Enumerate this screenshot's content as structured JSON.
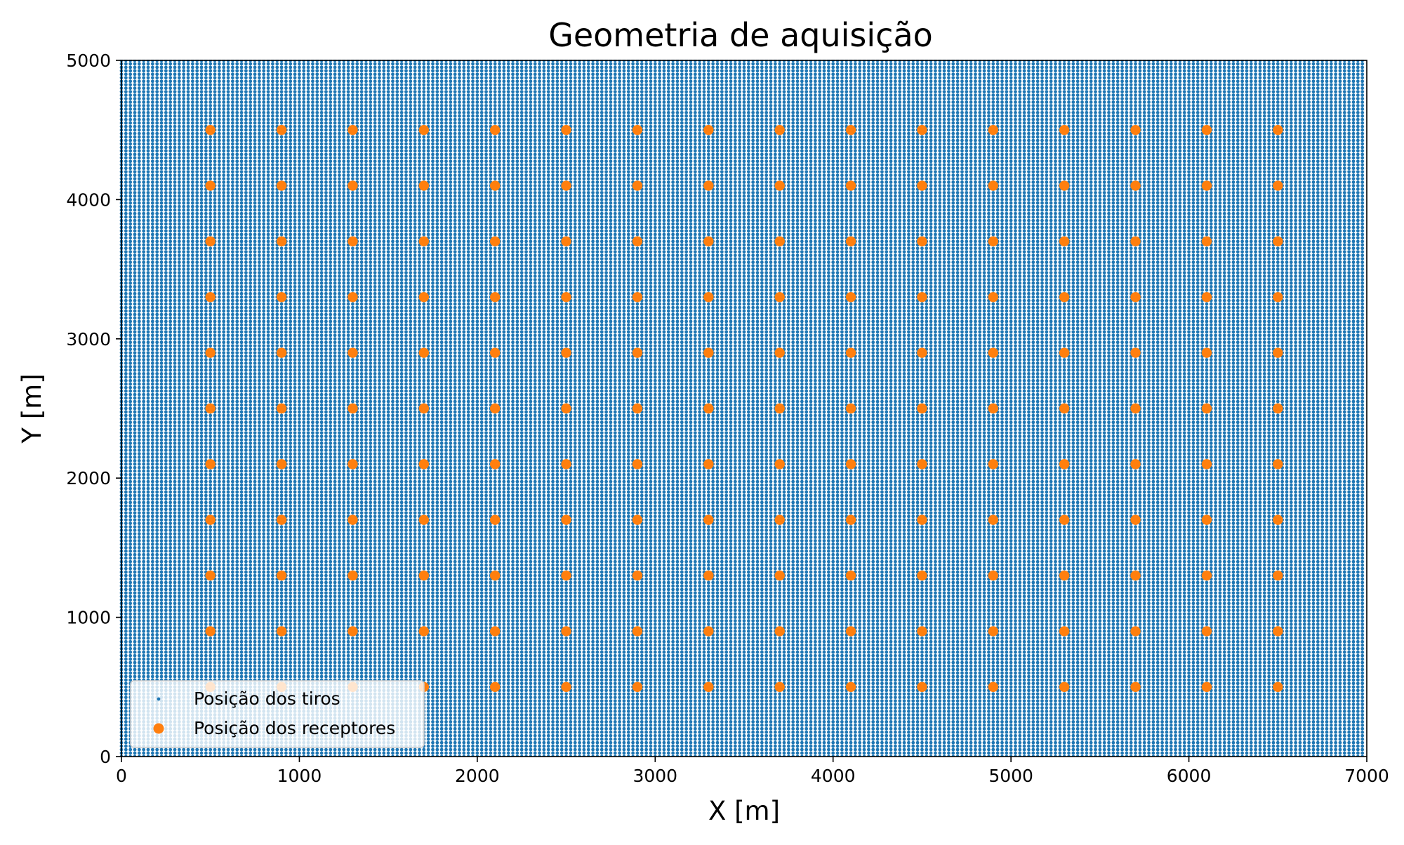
{
  "chart_data": {
    "type": "scatter",
    "title": "Geometria de aquisição",
    "xlabel": "X [m]",
    "ylabel": "Y [m]",
    "xlim": [
      0,
      7000
    ],
    "ylim": [
      0,
      5000
    ],
    "xticks": [
      "0",
      "1000",
      "2000",
      "3000",
      "4000",
      "5000",
      "6000",
      "7000"
    ],
    "yticks": [
      "0",
      "1000",
      "2000",
      "3000",
      "4000",
      "5000"
    ],
    "grid": false,
    "legend_position": "lower-left",
    "series": [
      {
        "name": "Posição dos tiros",
        "color": "#1f77b4",
        "marker": "small-dot",
        "grid": {
          "x_start": 0,
          "x_end": 7000,
          "x_step": 25,
          "y_start": 0,
          "y_end": 5000,
          "y_step": 25
        }
      },
      {
        "name": "Posição dos receptores",
        "color": "#ff7f0e",
        "marker": "dot",
        "grid": {
          "x_start": 500,
          "x_end": 6500,
          "x_step": 400,
          "y_start": 500,
          "y_end": 4500,
          "y_step": 400
        }
      }
    ]
  }
}
